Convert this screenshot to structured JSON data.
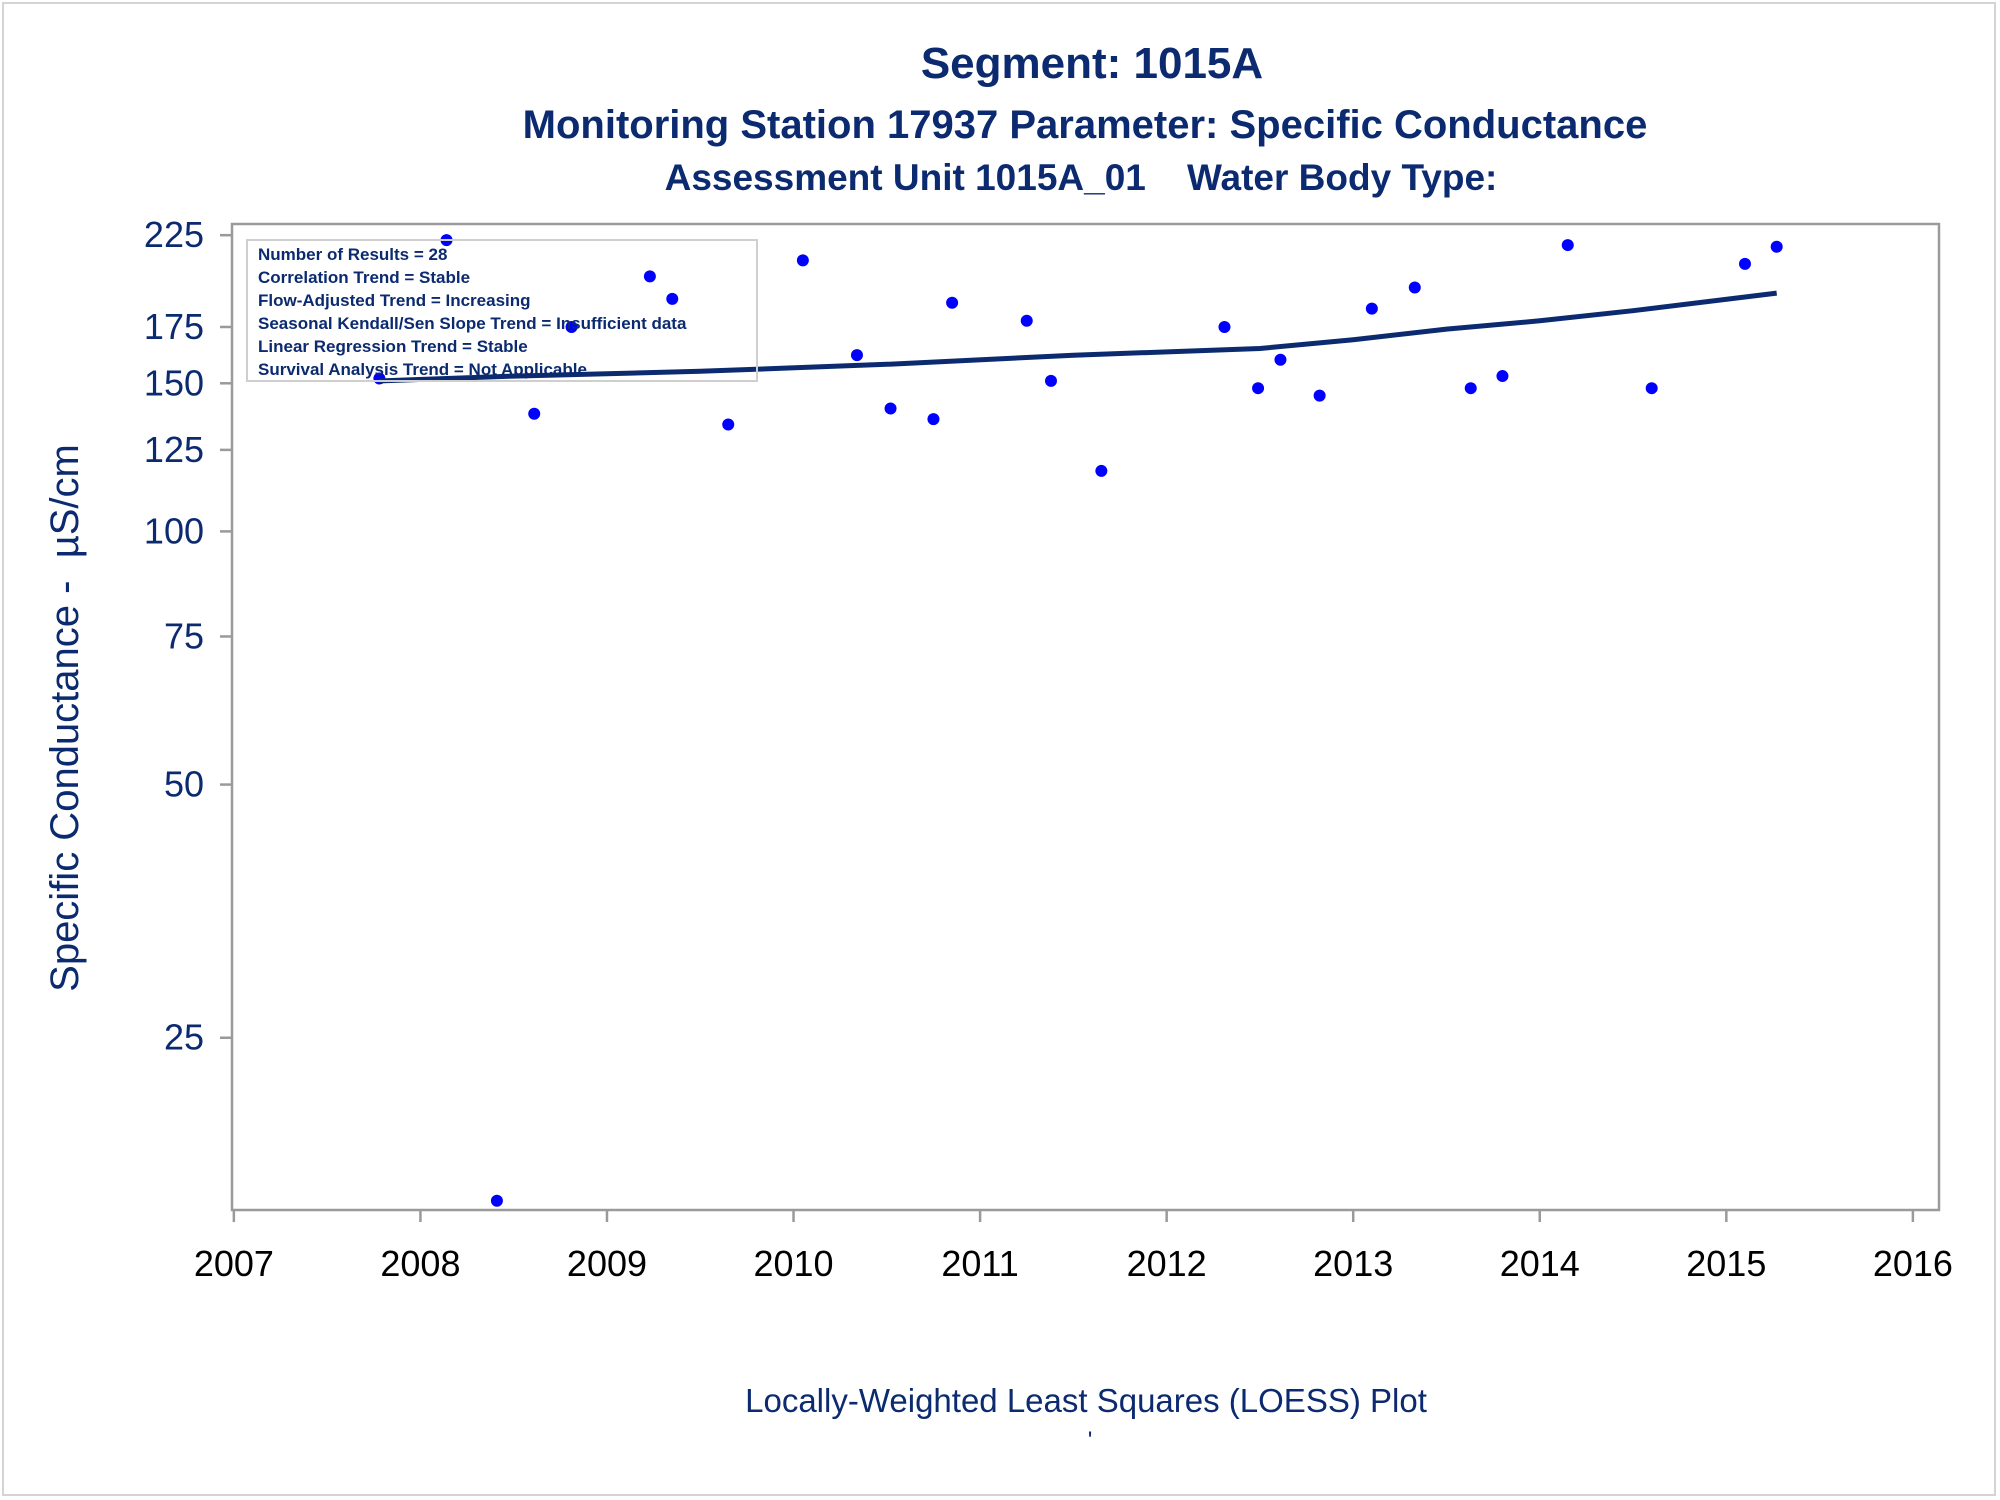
{
  "titles": {
    "line1": "Segment: 1015A",
    "line2": "Monitoring Station 17937 Parameter: Specific Conductance",
    "line3": "Assessment Unit 1015A_01    Water Body Type:"
  },
  "stats_box": {
    "lines": [
      "Number of Results = 28",
      "Correlation Trend = Stable",
      "Flow-Adjusted Trend = Increasing",
      "Seasonal Kendall/Sen Slope Trend = Insufficient data",
      "Linear Regression Trend = Stable",
      "Survival Analysis Trend = Not Applicable"
    ]
  },
  "footer": {
    "caption": "Locally-Weighted Least Squares (LOESS) Plot",
    "mark": "'"
  },
  "colors": {
    "title": "#0b2a6f",
    "points": "#0000ff",
    "loess": "#0b2a6f",
    "axis": "#9a9a9a"
  },
  "chart_data": {
    "type": "scatter",
    "title": "Segment: 1015A",
    "xlabel": "",
    "ylabel": "Specific Conductance -  µS/cm",
    "y_scale": "log",
    "xlim": [
      2006.99,
      2016.14
    ],
    "ylim": [
      15.6,
      232
    ],
    "x_ticks": [
      2007,
      2008,
      2009,
      2010,
      2011,
      2012,
      2013,
      2014,
      2015,
      2016
    ],
    "y_ticks": [
      25,
      50,
      75,
      100,
      125,
      150,
      175,
      225
    ],
    "grid": false,
    "series": [
      {
        "kind": "points",
        "points": [
          {
            "x": 2007.78,
            "y": 152
          },
          {
            "x": 2008.14,
            "y": 222
          },
          {
            "x": 2008.41,
            "y": 16
          },
          {
            "x": 2008.61,
            "y": 138
          },
          {
            "x": 2008.81,
            "y": 175
          },
          {
            "x": 2009.23,
            "y": 201
          },
          {
            "x": 2009.35,
            "y": 189
          },
          {
            "x": 2009.65,
            "y": 134
          },
          {
            "x": 2010.05,
            "y": 210
          },
          {
            "x": 2010.34,
            "y": 162
          },
          {
            "x": 2010.52,
            "y": 140
          },
          {
            "x": 2010.75,
            "y": 136
          },
          {
            "x": 2010.85,
            "y": 187
          },
          {
            "x": 2011.25,
            "y": 178
          },
          {
            "x": 2011.38,
            "y": 151
          },
          {
            "x": 2011.65,
            "y": 118
          },
          {
            "x": 2012.31,
            "y": 175
          },
          {
            "x": 2012.49,
            "y": 148
          },
          {
            "x": 2012.61,
            "y": 160
          },
          {
            "x": 2012.82,
            "y": 145
          },
          {
            "x": 2013.1,
            "y": 184
          },
          {
            "x": 2013.33,
            "y": 195
          },
          {
            "x": 2013.63,
            "y": 148
          },
          {
            "x": 2013.8,
            "y": 153
          },
          {
            "x": 2014.15,
            "y": 219
          },
          {
            "x": 2014.6,
            "y": 148
          },
          {
            "x": 2015.1,
            "y": 208
          },
          {
            "x": 2015.27,
            "y": 218
          }
        ]
      },
      {
        "kind": "loess",
        "points": [
          {
            "x": 2007.78,
            "y": 151
          },
          {
            "x": 2008.5,
            "y": 153
          },
          {
            "x": 2009.5,
            "y": 155
          },
          {
            "x": 2010.5,
            "y": 158
          },
          {
            "x": 2011.5,
            "y": 162
          },
          {
            "x": 2012.5,
            "y": 165
          },
          {
            "x": 2013.0,
            "y": 169
          },
          {
            "x": 2013.5,
            "y": 174
          },
          {
            "x": 2014.0,
            "y": 178
          },
          {
            "x": 2014.5,
            "y": 183
          },
          {
            "x": 2015.27,
            "y": 192
          }
        ]
      }
    ]
  }
}
